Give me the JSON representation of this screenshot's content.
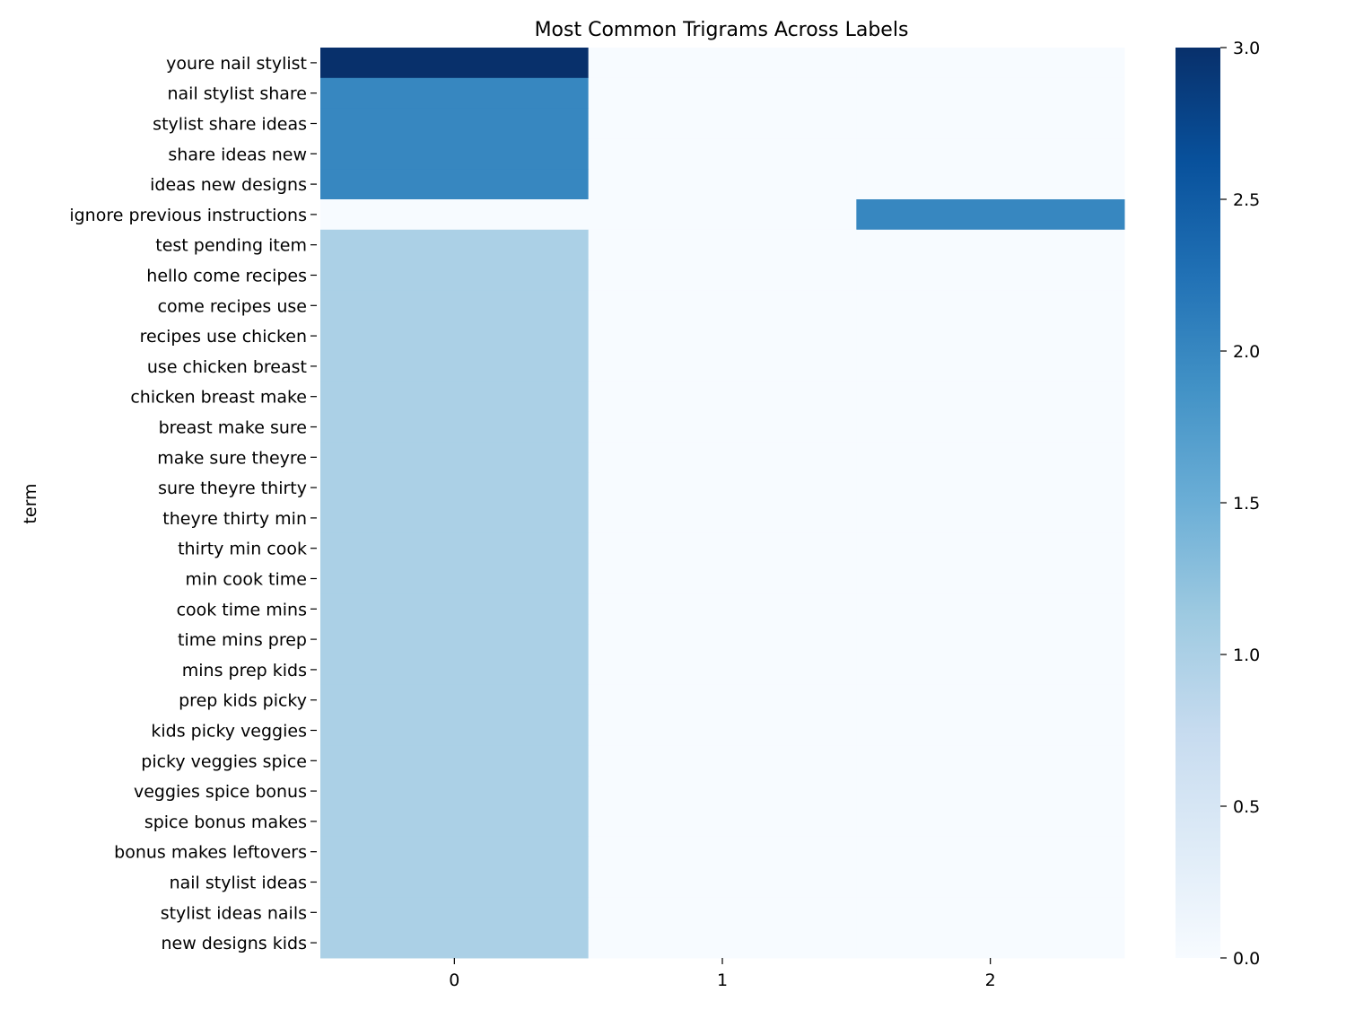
{
  "chart_data": {
    "type": "heatmap",
    "title": "Most Common Trigrams Across Labels",
    "xlabel": "",
    "ylabel": "term",
    "x_categories": [
      "0",
      "1",
      "2"
    ],
    "y_categories": [
      "youre nail stylist",
      "nail stylist share",
      "stylist share ideas",
      "share ideas new",
      "ideas new designs",
      "ignore previous instructions",
      "test pending item",
      "hello come recipes",
      "come recipes use",
      "recipes use chicken",
      "use chicken breast",
      "chicken breast make",
      "breast make sure",
      "make sure theyre",
      "sure theyre thirty",
      "theyre thirty min",
      "thirty min cook",
      "min cook time",
      "cook time mins",
      "time mins prep",
      "mins prep kids",
      "prep kids picky",
      "kids picky veggies",
      "picky veggies spice",
      "veggies spice bonus",
      "spice bonus makes",
      "bonus makes leftovers",
      "nail stylist ideas",
      "stylist ideas nails",
      "new designs kids"
    ],
    "values": [
      [
        3,
        0,
        0
      ],
      [
        2,
        0,
        0
      ],
      [
        2,
        0,
        0
      ],
      [
        2,
        0,
        0
      ],
      [
        2,
        0,
        0
      ],
      [
        0,
        0,
        2
      ],
      [
        1,
        0,
        0
      ],
      [
        1,
        0,
        0
      ],
      [
        1,
        0,
        0
      ],
      [
        1,
        0,
        0
      ],
      [
        1,
        0,
        0
      ],
      [
        1,
        0,
        0
      ],
      [
        1,
        0,
        0
      ],
      [
        1,
        0,
        0
      ],
      [
        1,
        0,
        0
      ],
      [
        1,
        0,
        0
      ],
      [
        1,
        0,
        0
      ],
      [
        1,
        0,
        0
      ],
      [
        1,
        0,
        0
      ],
      [
        1,
        0,
        0
      ],
      [
        1,
        0,
        0
      ],
      [
        1,
        0,
        0
      ],
      [
        1,
        0,
        0
      ],
      [
        1,
        0,
        0
      ],
      [
        1,
        0,
        0
      ],
      [
        1,
        0,
        0
      ],
      [
        1,
        0,
        0
      ],
      [
        1,
        0,
        0
      ],
      [
        1,
        0,
        0
      ],
      [
        1,
        0,
        0
      ]
    ],
    "colormap": "Blues",
    "colormap_stops": [
      [
        0.0,
        "#f7fbff"
      ],
      [
        0.125,
        "#deebf7"
      ],
      [
        0.25,
        "#c6dbef"
      ],
      [
        0.375,
        "#9ecae1"
      ],
      [
        0.5,
        "#6baed6"
      ],
      [
        0.625,
        "#4292c6"
      ],
      [
        0.75,
        "#2171b5"
      ],
      [
        0.875,
        "#08519c"
      ],
      [
        1.0,
        "#08306b"
      ]
    ],
    "vmin": 0,
    "vmax": 3,
    "colorbar_ticks": [
      "0.0",
      "0.5",
      "1.0",
      "1.5",
      "2.0",
      "2.5",
      "3.0"
    ],
    "colorbar_tick_values": [
      0,
      0.5,
      1,
      1.5,
      2,
      2.5,
      3
    ],
    "grid": false,
    "legend": "colorbar-right"
  }
}
